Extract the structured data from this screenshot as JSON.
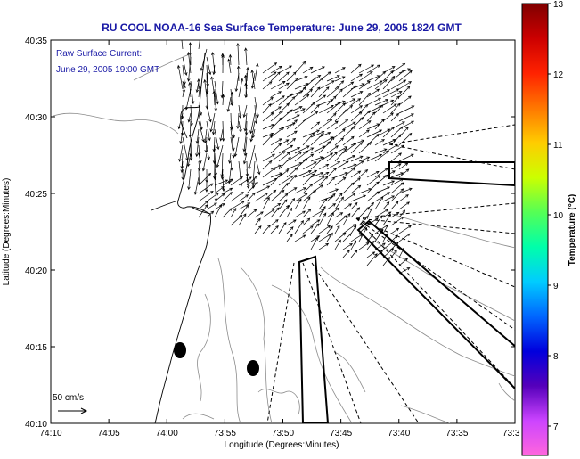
{
  "title": "RU COOL  NOAA-16  Sea Surface Temperature:  June 29, 2005 1824 GMT",
  "legend": {
    "line1": "Raw Surface Current:",
    "line2": "June 29, 2005 19:00 GMT"
  },
  "scale_label": "50 cm/s",
  "xlabel": "Longitude (Degrees:Minutes)",
  "ylabel": "Latitude (Degrees:Minutes)",
  "x_ticks": [
    "74:10",
    "74:05",
    "74:00",
    "73:55",
    "73:50",
    "73:45",
    "73:40",
    "73:35",
    "73:3"
  ],
  "y_ticks": [
    "40:35",
    "40:30",
    "40:25",
    "40:20",
    "40:15",
    "40:10"
  ],
  "colorbar": {
    "label": "Temperature (°C)",
    "ticks": [
      "13",
      "12",
      "11",
      "10",
      "9",
      "8",
      "7"
    ],
    "colors": [
      "#800000",
      "#cc0000",
      "#ff2200",
      "#ff7700",
      "#ffcc00",
      "#ccff00",
      "#55ff55",
      "#00ffaa",
      "#00ccff",
      "#0066ff",
      "#0000dd",
      "#5500bb",
      "#cc44ff",
      "#ff66dd"
    ]
  },
  "colors": {
    "text_blue": "#1a1aa6",
    "coast": "#000000",
    "isobath": "#8c8c8c"
  }
}
